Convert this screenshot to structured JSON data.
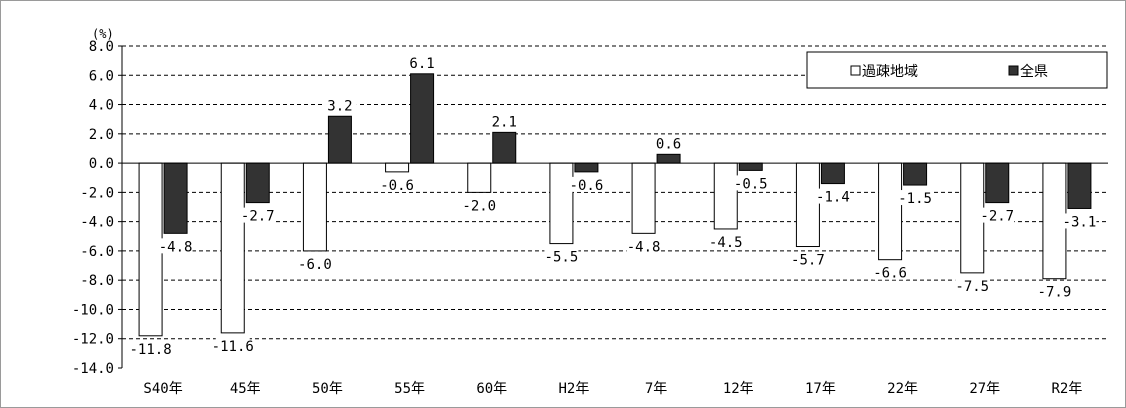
{
  "chart_data": {
    "type": "bar",
    "unit_label": "(%)",
    "categories": [
      "S40年",
      "45年",
      "50年",
      "55年",
      "60年",
      "H2年",
      "7年",
      "12年",
      "17年",
      "22年",
      "27年",
      "R2年"
    ],
    "series": [
      {
        "name": "過疎地域",
        "color": "#ffffff",
        "values": [
          -11.8,
          -11.6,
          -6.0,
          -0.6,
          -2.0,
          -5.5,
          -4.8,
          -4.5,
          -5.7,
          -6.6,
          -7.5,
          -7.9
        ],
        "labels": [
          "-11.8",
          "-11.6",
          "-6.0",
          "-0.6",
          "-2.0",
          "-5.5",
          "-4.8",
          "-4.5",
          "-5.7",
          "-6.6",
          "-7.5",
          "-7.9"
        ]
      },
      {
        "name": "全県",
        "color": "#333333",
        "values": [
          -4.8,
          -2.7,
          3.2,
          6.1,
          2.1,
          -0.6,
          0.6,
          -0.5,
          -1.4,
          -1.5,
          -2.7,
          -3.1
        ],
        "labels": [
          "-4.8",
          "-2.7",
          "3.2",
          "6.1",
          "2.1",
          "-0.6",
          "0.6",
          "-0.5",
          "-1.4",
          "-1.5",
          "-2.7",
          "-3.1"
        ]
      }
    ],
    "ylim": [
      -14.0,
      8.0
    ],
    "y_ticks": [
      "8.0",
      "6.0",
      "4.0",
      "2.0",
      "0.0",
      "-2.0",
      "-4.0",
      "-6.0",
      "-8.0",
      "-10.0",
      "-12.0",
      "-14.0"
    ],
    "grid": "dashed horizontal",
    "legend_position": "top-right",
    "title": "",
    "xlabel": "",
    "ylabel": ""
  }
}
